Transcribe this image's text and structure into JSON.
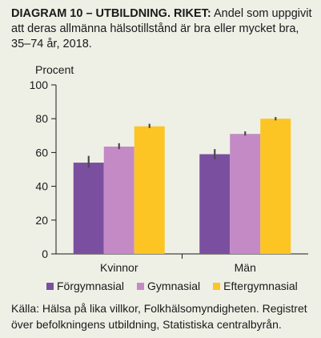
{
  "header": {
    "title_bold": "DIAGRAM 10 – UTBILDNING. RIKET:",
    "title_rest": "Andel som uppgivit att deras allmänna hälsotillstånd är bra eller mycket bra, 35–74 år, 2018."
  },
  "source": "Källa: Hälsa på lika villkor, Folkhälsomyndigheten. Registret över befolkningens utbildning, Statistiska centralbyrån.",
  "colors": {
    "background": "#eef0e6",
    "axis": "#1a1a1a",
    "errorbar": "#4a4a4a"
  },
  "chart_data": {
    "type": "bar",
    "ylabel": "Procent",
    "ylim": [
      0,
      100
    ],
    "yticks": [
      0,
      20,
      40,
      60,
      80,
      100
    ],
    "grid": false,
    "legend_position": "bottom",
    "categories": [
      "Kvinnor",
      "Män"
    ],
    "series": [
      {
        "name": "Förgymnasial",
        "color": "#7b4fa0",
        "values": [
          54,
          59
        ],
        "err_low": [
          51,
          56
        ],
        "err_high": [
          58,
          62
        ]
      },
      {
        "name": "Gymnasial",
        "color": "#c48ac6",
        "values": [
          63.5,
          71
        ],
        "err_low": [
          62,
          70
        ],
        "err_high": [
          65.5,
          72.5
        ]
      },
      {
        "name": "Eftergymnasial",
        "color": "#fcc524",
        "values": [
          75.5,
          80
        ],
        "err_low": [
          74.5,
          79
        ],
        "err_high": [
          77,
          81
        ]
      }
    ]
  }
}
